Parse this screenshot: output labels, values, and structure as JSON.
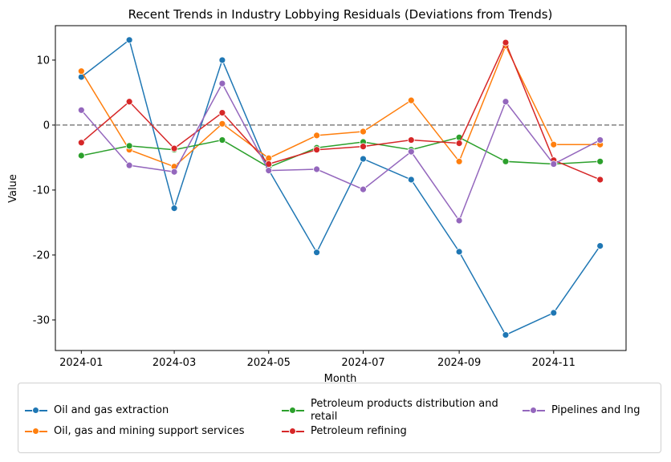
{
  "chart_data": {
    "type": "line",
    "title": "Recent Trends in Industry Lobbying Residuals (Deviations from Trends)",
    "xlabel": "Month",
    "ylabel": "Value",
    "x": [
      "2024-01",
      "2024-02",
      "2024-03",
      "2024-04",
      "2024-05",
      "2024-06",
      "2024-07",
      "2024-08",
      "2024-09",
      "2024-10",
      "2024-11",
      "2024-12"
    ],
    "xticks": [
      "2024-01",
      "2024-03",
      "2024-05",
      "2024-07",
      "2024-09",
      "2024-11"
    ],
    "ylim": [
      -34.7,
      15.3
    ],
    "yticks": [
      -30,
      -20,
      -10,
      0,
      10
    ],
    "hline": 0,
    "series": [
      {
        "name": "Oil and gas extraction",
        "color": "#1f77b4",
        "values": [
          7.4,
          13.1,
          -12.8,
          10.0,
          -6.9,
          -19.6,
          -5.2,
          -8.4,
          -19.5,
          -32.3,
          -28.9,
          -18.6
        ]
      },
      {
        "name": "Oil, gas and mining support services",
        "color": "#ff7f0e",
        "values": [
          8.3,
          -3.8,
          -6.4,
          0.2,
          -5.1,
          -1.6,
          -1.0,
          3.8,
          -5.6,
          12.2,
          -3.0,
          -3.0
        ]
      },
      {
        "name": "Petroleum products distribution and retail",
        "color": "#2ca02c",
        "values": [
          -4.7,
          -3.2,
          -3.8,
          -2.3,
          -6.5,
          -3.5,
          -2.6,
          -3.8,
          -1.9,
          -5.6,
          -6.0,
          -5.6
        ]
      },
      {
        "name": "Petroleum refining",
        "color": "#d62728",
        "values": [
          -2.7,
          3.6,
          -3.6,
          1.9,
          -6.0,
          -3.8,
          -3.3,
          -2.3,
          -2.8,
          12.7,
          -5.4,
          -8.4
        ]
      },
      {
        "name": "Pipelines and lng",
        "color": "#9467bd",
        "values": [
          2.3,
          -6.2,
          -7.2,
          6.4,
          -7.0,
          -6.8,
          -9.9,
          -4.1,
          -14.7,
          3.6,
          -6.0,
          -2.3
        ]
      }
    ],
    "legend": "lower center"
  }
}
